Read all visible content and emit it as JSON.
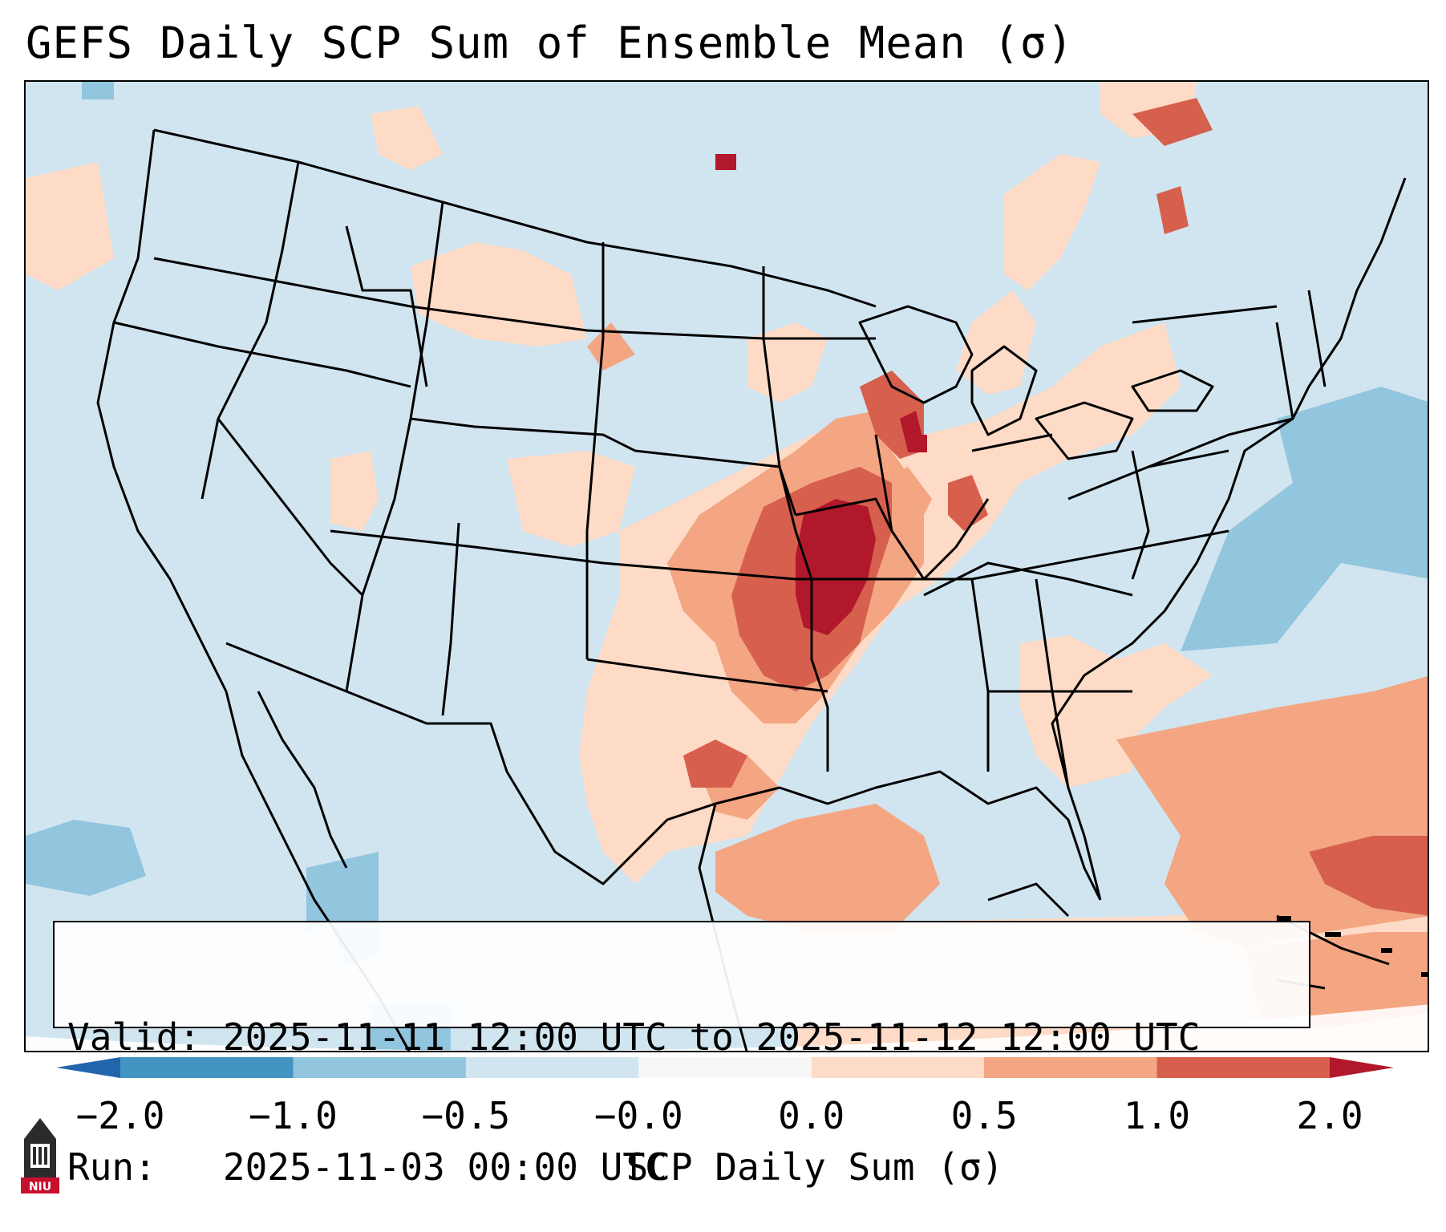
{
  "title": "GEFS Daily SCP Sum of Ensemble Mean (σ)",
  "info": {
    "valid_label": "Valid:",
    "valid_value": "2025-11-11 12:00 UTC to 2025-11-12 12:00 UTC",
    "run_label": "Run:",
    "run_value": "2025-11-03 00:00 UTC"
  },
  "colorbar": {
    "label": "SCP Daily Sum (σ)",
    "tick_labels": [
      "−2.0",
      "−1.0",
      "−0.5",
      "−0.0",
      "0.0",
      "0.5",
      "1.0",
      "2.0"
    ],
    "bins": [
      {
        "range": "-2.0 to -1.0",
        "color": "#4393c3"
      },
      {
        "range": "-1.0 to -0.5",
        "color": "#92c5de"
      },
      {
        "range": "-0.5 to -0.0",
        "color": "#d1e5f0"
      },
      {
        "range": "-0.0 to 0.0",
        "color": "#f7f7f7"
      },
      {
        "range": "0.0 to 0.5",
        "color": "#fddbc7"
      },
      {
        "range": "0.5 to 1.0",
        "color": "#f4a582"
      },
      {
        "range": "1.0 to 2.0",
        "color": "#d6604d"
      }
    ],
    "extend_low_color": "#2166ac",
    "extend_high_color": "#b2182b"
  },
  "map": {
    "projection": "Lambert conformal, CONUS",
    "background_color": "#cfe3ef",
    "features": [
      "state-borders",
      "country-borders",
      "coastlines"
    ]
  },
  "logo": {
    "text": "NIU",
    "icon": "niu-logo-icon"
  }
}
